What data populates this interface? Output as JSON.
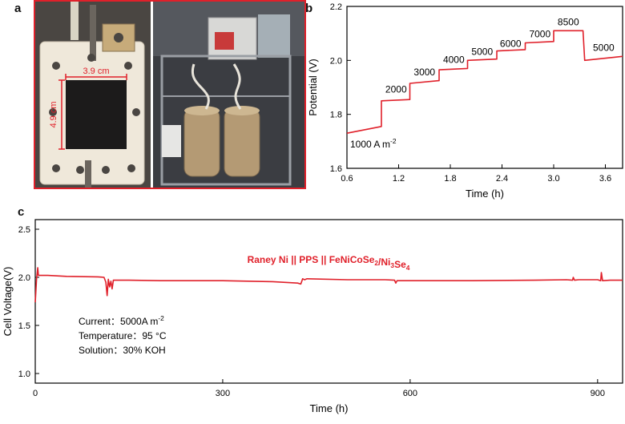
{
  "panels": {
    "a": {
      "letter": "a",
      "width_label": "3.9 cm",
      "height_label": "4.9 cm"
    },
    "b": {
      "letter": "b"
    },
    "c": {
      "letter": "c"
    }
  },
  "colors": {
    "data_line": "#e0202a",
    "annotation": "#e0202a",
    "frame_a": "#e0202a",
    "axis": "#000000"
  },
  "chart_data": [
    {
      "id": "b",
      "type": "line",
      "xlabel": "Time (h)",
      "ylabel": "Potential (V)",
      "xlim": [
        0.6,
        3.8
      ],
      "ylim": [
        1.6,
        2.2
      ],
      "xticks": [
        0.6,
        1.2,
        1.8,
        2.4,
        3.0,
        3.6
      ],
      "xtick_labels": [
        "0.6",
        "1.2",
        "1.8",
        "2.4",
        "3.0",
        "3.6"
      ],
      "yticks": [
        1.6,
        1.8,
        2.0,
        2.2
      ],
      "ytick_labels": [
        "1.6",
        "1.8",
        "2.0",
        "2.2"
      ],
      "series": [
        {
          "x": [
            0.6,
            1.0,
            1.0,
            1.33,
            1.33,
            1.67,
            1.67,
            2.0,
            2.0,
            2.34,
            2.34,
            2.67,
            2.67,
            3.0,
            3.0,
            3.34,
            3.36,
            3.8
          ],
          "y": [
            1.73,
            1.755,
            1.85,
            1.855,
            1.915,
            1.925,
            1.965,
            1.97,
            2.0,
            2.005,
            2.035,
            2.04,
            2.065,
            2.07,
            2.11,
            2.11,
            2.0,
            2.015
          ]
        }
      ],
      "annotations": [
        {
          "text": "2000",
          "x": 1.17,
          "y": 1.88
        },
        {
          "text": "3000",
          "x": 1.5,
          "y": 1.945
        },
        {
          "text": "4000",
          "x": 1.84,
          "y": 1.99
        },
        {
          "text": "5000",
          "x": 2.17,
          "y": 2.02
        },
        {
          "text": "6000",
          "x": 2.5,
          "y": 2.05
        },
        {
          "text": "7000",
          "x": 2.84,
          "y": 2.085
        },
        {
          "text": "8500",
          "x": 3.17,
          "y": 2.13
        },
        {
          "text": "5000",
          "x": 3.58,
          "y": 2.035
        }
      ],
      "start_label": {
        "main": "1000 A m",
        "sup": "-2"
      },
      "grid": false
    },
    {
      "id": "c",
      "type": "line",
      "xlabel": "Time (h)",
      "ylabel": "Cell Voltage(V)",
      "xlim": [
        0,
        940
      ],
      "ylim": [
        0.9,
        2.6
      ],
      "xticks": [
        0,
        300,
        600,
        900
      ],
      "xtick_labels": [
        "0",
        "300",
        "600",
        "900"
      ],
      "yticks": [
        1.0,
        1.5,
        2.0,
        2.5
      ],
      "ytick_labels": [
        "1.0",
        "1.5",
        "2.0",
        "2.5"
      ],
      "series": [
        {
          "name": "Raney Ni || PPS || FeNiCoSe2/Ni3Se4",
          "x": [
            0,
            2,
            4,
            5,
            8,
            20,
            50,
            100,
            110,
            113,
            115,
            117,
            119,
            121,
            123,
            125,
            130,
            150,
            200,
            300,
            380,
            420,
            425,
            428,
            431,
            435,
            500,
            560,
            575,
            577,
            579,
            581,
            600,
            700,
            800,
            850,
            860,
            861,
            863,
            870,
            900,
            905,
            906,
            908,
            920,
            940
          ],
          "y": [
            1.74,
            1.98,
            2.1,
            2.02,
            2.02,
            2.02,
            2.01,
            2.005,
            2.0,
            1.95,
            1.81,
            1.98,
            1.9,
            1.96,
            1.88,
            1.97,
            1.97,
            1.97,
            1.965,
            1.965,
            1.955,
            1.94,
            1.93,
            1.985,
            1.975,
            1.985,
            1.975,
            1.975,
            1.97,
            1.94,
            1.965,
            1.965,
            1.965,
            1.965,
            1.97,
            1.975,
            1.97,
            2.0,
            1.97,
            1.975,
            1.975,
            1.965,
            2.05,
            1.965,
            1.97,
            1.97
          ]
        }
      ],
      "legend": {
        "parts": [
          {
            "t": "Raney Ni || PPS || FeNiCoSe"
          },
          {
            "t": "2",
            "sub": true
          },
          {
            "t": "/Ni"
          },
          {
            "t": "3",
            "sub": true
          },
          {
            "t": "Se"
          },
          {
            "t": "4",
            "sub": true
          }
        ],
        "placement": "top-center"
      },
      "conditions": [
        {
          "label": "Current：",
          "value": "5000A m",
          "sup": "-2"
        },
        {
          "label": "Temperature：",
          "value": "95 °C"
        },
        {
          "label": "Solution：",
          "value": "30% KOH"
        }
      ],
      "grid": false
    }
  ]
}
